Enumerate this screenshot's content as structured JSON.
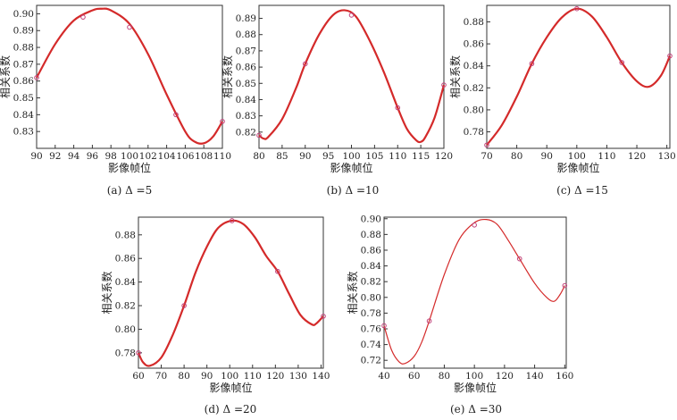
{
  "chart_data": [
    {
      "type": "line",
      "caption": "(a) Δ =5",
      "xlabel": "影像帧位",
      "ylabel": "相关系数",
      "xlim": [
        90,
        110
      ],
      "ylim": [
        0.82,
        0.905
      ],
      "xticks": [
        90,
        92,
        94,
        96,
        98,
        100,
        102,
        104,
        106,
        108,
        110
      ],
      "yticks": [
        0.83,
        0.84,
        0.85,
        0.86,
        0.87,
        0.88,
        0.89,
        0.9
      ],
      "ytick_labels": [
        "0.83",
        "0.84",
        "0.85",
        "0.86",
        "0.87",
        "0.88",
        "0.89",
        "0.90"
      ],
      "points": {
        "x": [
          90,
          95,
          100,
          105,
          110
        ],
        "y": [
          0.862,
          0.898,
          0.892,
          0.84,
          0.836
        ]
      },
      "curve": {
        "x": [
          90,
          92,
          94,
          96,
          97,
          98,
          100,
          102,
          104,
          106,
          107,
          108,
          109,
          110
        ],
        "y": [
          0.862,
          0.882,
          0.896,
          0.902,
          0.903,
          0.902,
          0.894,
          0.876,
          0.852,
          0.83,
          0.824,
          0.823,
          0.827,
          0.836
        ]
      }
    },
    {
      "type": "line",
      "caption": "(b) Δ =10",
      "xlabel": "影像帧位",
      "ylabel": "相关系数",
      "xlim": [
        80,
        120
      ],
      "ylim": [
        0.81,
        0.898
      ],
      "xticks": [
        80,
        85,
        90,
        95,
        100,
        105,
        110,
        115,
        120
      ],
      "yticks": [
        0.82,
        0.83,
        0.84,
        0.85,
        0.86,
        0.87,
        0.88,
        0.89
      ],
      "ytick_labels": [
        "0.82",
        "0.83",
        "0.84",
        "0.85",
        "0.86",
        "0.87",
        "0.88",
        "0.89"
      ],
      "points": {
        "x": [
          80,
          90,
          100,
          110,
          120
        ],
        "y": [
          0.818,
          0.862,
          0.892,
          0.835,
          0.849
        ]
      },
      "curve": {
        "x": [
          80,
          81,
          82,
          85,
          88,
          90,
          93,
          96,
          98.5,
          101,
          104,
          107,
          110,
          112,
          114,
          115,
          116,
          118,
          120
        ],
        "y": [
          0.818,
          0.816,
          0.817,
          0.828,
          0.847,
          0.862,
          0.88,
          0.892,
          0.895,
          0.891,
          0.876,
          0.857,
          0.835,
          0.822,
          0.815,
          0.814,
          0.817,
          0.829,
          0.849
        ]
      }
    },
    {
      "type": "line",
      "caption": "(c) Δ =15",
      "xlabel": "影像帧位",
      "ylabel": "相关系数",
      "xlim": [
        70,
        131
      ],
      "ylim": [
        0.765,
        0.895
      ],
      "xticks": [
        70,
        80,
        90,
        100,
        110,
        120,
        130
      ],
      "yticks": [
        0.78,
        0.8,
        0.82,
        0.84,
        0.86,
        0.88
      ],
      "ytick_labels": [
        "0.78",
        "0.80",
        "0.82",
        "0.84",
        "0.86",
        "0.88"
      ],
      "points": {
        "x": [
          70,
          85,
          100,
          115,
          131
        ],
        "y": [
          0.768,
          0.842,
          0.892,
          0.843,
          0.849
        ]
      },
      "curve": {
        "x": [
          70,
          75,
          80,
          85,
          90,
          95,
          100,
          105,
          110,
          115,
          120,
          124,
          128,
          131
        ],
        "y": [
          0.768,
          0.786,
          0.812,
          0.842,
          0.866,
          0.884,
          0.892,
          0.885,
          0.866,
          0.843,
          0.826,
          0.821,
          0.831,
          0.849
        ]
      }
    },
    {
      "type": "line",
      "caption": "(d) Δ =20",
      "xlabel": "影像帧位",
      "ylabel": "相关系数",
      "xlim": [
        60,
        141
      ],
      "ylim": [
        0.767,
        0.895
      ],
      "xticks": [
        60,
        70,
        80,
        90,
        100,
        110,
        120,
        130,
        140
      ],
      "yticks": [
        0.78,
        0.8,
        0.82,
        0.84,
        0.86,
        0.88
      ],
      "ytick_labels": [
        "0.78",
        "0.80",
        "0.82",
        "0.84",
        "0.86",
        "0.88"
      ],
      "points": {
        "x": [
          60,
          80,
          101,
          121,
          141
        ],
        "y": [
          0.78,
          0.82,
          0.892,
          0.849,
          0.811
        ]
      },
      "curve": {
        "x": [
          60,
          62,
          65,
          70,
          75,
          80,
          85,
          90,
          95,
          101,
          106,
          111,
          116,
          121,
          126,
          131,
          136,
          138,
          141
        ],
        "y": [
          0.78,
          0.772,
          0.769,
          0.776,
          0.795,
          0.82,
          0.848,
          0.87,
          0.886,
          0.892,
          0.889,
          0.878,
          0.862,
          0.849,
          0.83,
          0.812,
          0.804,
          0.805,
          0.811
        ]
      }
    },
    {
      "type": "line",
      "caption": "(e) Δ =30",
      "xlabel": "影像帧位",
      "ylabel": "相关系数",
      "xlim": [
        40,
        161
      ],
      "ylim": [
        0.71,
        0.902
      ],
      "xticks": [
        40,
        60,
        80,
        100,
        120,
        140,
        160
      ],
      "yticks": [
        0.72,
        0.74,
        0.76,
        0.78,
        0.8,
        0.82,
        0.84,
        0.86,
        0.88,
        0.9
      ],
      "ytick_labels": [
        "0.72",
        "0.74",
        "0.76",
        "0.78",
        "0.80",
        "0.82",
        "0.84",
        "0.86",
        "0.88",
        "0.90"
      ],
      "points": {
        "x": [
          40,
          70,
          100,
          130,
          160
        ],
        "y": [
          0.764,
          0.77,
          0.892,
          0.849,
          0.815
        ]
      },
      "curve": {
        "x": [
          40,
          45,
          50,
          54,
          60,
          65,
          70,
          80,
          90,
          100,
          108,
          115,
          122,
          130,
          140,
          148,
          153,
          157,
          160
        ],
        "y": [
          0.764,
          0.733,
          0.718,
          0.716,
          0.725,
          0.743,
          0.77,
          0.829,
          0.874,
          0.895,
          0.899,
          0.893,
          0.874,
          0.849,
          0.818,
          0.8,
          0.795,
          0.804,
          0.815
        ]
      }
    }
  ],
  "style": {
    "curve_color": "#d42a2a",
    "marker_color": "#c0407a",
    "axis_color": "#333333"
  }
}
